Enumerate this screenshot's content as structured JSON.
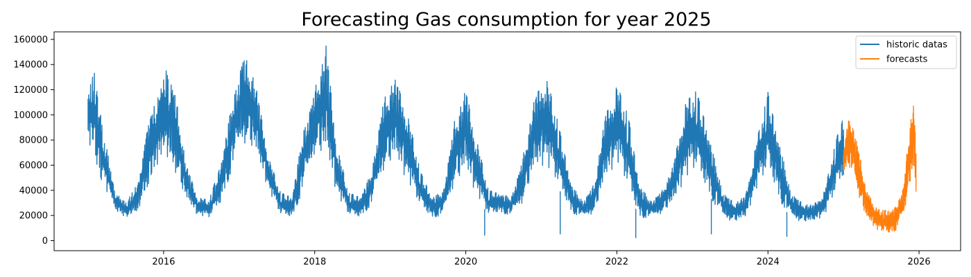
{
  "chart_data": {
    "type": "line",
    "title": "Forecasting Gas consumption for year 2025",
    "xlabel": "",
    "ylabel": "",
    "x_unit": "year",
    "xlim": [
      2014.55,
      2026.55
    ],
    "ylim": [
      -8000,
      166000
    ],
    "x_ticks": [
      {
        "value": 2016,
        "label": "2016"
      },
      {
        "value": 2018,
        "label": "2018"
      },
      {
        "value": 2020,
        "label": "2020"
      },
      {
        "value": 2022,
        "label": "2022"
      },
      {
        "value": 2024,
        "label": "2024"
      },
      {
        "value": 2026,
        "label": "2026"
      }
    ],
    "y_ticks": [
      {
        "value": 0,
        "label": "0"
      },
      {
        "value": 20000,
        "label": "20000"
      },
      {
        "value": 40000,
        "label": "40000"
      },
      {
        "value": 60000,
        "label": "60000"
      },
      {
        "value": 80000,
        "label": "80000"
      },
      {
        "value": 100000,
        "label": "100000"
      },
      {
        "value": 120000,
        "label": "120000"
      },
      {
        "value": 140000,
        "label": "140000"
      },
      {
        "value": 160000,
        "label": "160000"
      }
    ],
    "grid": false,
    "legend_position": "top-right",
    "series": [
      {
        "name": "historic datas",
        "color": "#1f77b4",
        "x_start": 2015.0,
        "x_end": 2025.0,
        "points_per_year": 120,
        "envelope_x": [
          2015.0,
          2015.08,
          2015.2,
          2015.35,
          2015.5,
          2015.65,
          2015.8,
          2015.95,
          2016.05,
          2016.15,
          2016.3,
          2016.45,
          2016.6,
          2016.75,
          2016.9,
          2017.05,
          2017.2,
          2017.4,
          2017.55,
          2017.7,
          2017.85,
          2018.0,
          2018.15,
          2018.3,
          2018.45,
          2018.6,
          2018.75,
          2018.9,
          2019.05,
          2019.2,
          2019.4,
          2019.55,
          2019.7,
          2019.85,
          2020.0,
          2020.15,
          2020.3,
          2020.45,
          2020.6,
          2020.75,
          2020.9,
          2021.05,
          2021.2,
          2021.4,
          2021.55,
          2021.7,
          2021.85,
          2022.0,
          2022.15,
          2022.3,
          2022.45,
          2022.6,
          2022.75,
          2022.9,
          2023.05,
          2023.2,
          2023.4,
          2023.55,
          2023.7,
          2023.85,
          2024.0,
          2024.15,
          2024.3,
          2024.45,
          2024.6,
          2024.75,
          2024.9,
          2025.0
        ],
        "envelope_low": [
          75000,
          65000,
          40000,
          25000,
          18000,
          20000,
          45000,
          60000,
          62000,
          55000,
          32000,
          20000,
          18000,
          28000,
          55000,
          78000,
          72000,
          38000,
          20000,
          18000,
          40000,
          70000,
          68000,
          35000,
          20000,
          18000,
          28000,
          55000,
          65000,
          50000,
          26000,
          18000,
          20000,
          45000,
          55000,
          35000,
          20000,
          22000,
          20000,
          30000,
          55000,
          60000,
          45000,
          22000,
          18000,
          22000,
          48000,
          62000,
          40000,
          18000,
          18000,
          22000,
          30000,
          48000,
          55000,
          38000,
          18000,
          15000,
          18000,
          40000,
          55000,
          32000,
          18000,
          15000,
          15000,
          20000,
          38000,
          48000
        ],
        "envelope_high": [
          120000,
          135000,
          90000,
          40000,
          30000,
          45000,
          95000,
          120000,
          140000,
          120000,
          60000,
          35000,
          32000,
          60000,
          110000,
          150000,
          130000,
          65000,
          38000,
          35000,
          90000,
          120000,
          155000,
          75000,
          38000,
          35000,
          55000,
          110000,
          130000,
          110000,
          55000,
          35000,
          40000,
          95000,
          120000,
          80000,
          40000,
          38000,
          35000,
          65000,
          110000,
          135000,
          100000,
          45000,
          32000,
          45000,
          100000,
          125000,
          100000,
          45000,
          32000,
          40000,
          60000,
          110000,
          120000,
          90000,
          40000,
          30000,
          35000,
          80000,
          118000,
          80000,
          40000,
          30000,
          28000,
          40000,
          80000,
          100000
        ],
        "spikes": [
          {
            "x": 2020.25,
            "y": 4000
          },
          {
            "x": 2021.25,
            "y": 5000
          },
          {
            "x": 2022.25,
            "y": 2000
          },
          {
            "x": 2023.25,
            "y": 5000
          },
          {
            "x": 2024.25,
            "y": 3000
          }
        ]
      },
      {
        "name": "forecasts",
        "color": "#ff7f0e",
        "x_start": 2025.0,
        "x_end": 2025.96,
        "points_per_year": 180,
        "envelope_x": [
          2025.0,
          2025.06,
          2025.15,
          2025.3,
          2025.45,
          2025.6,
          2025.7,
          2025.8,
          2025.88,
          2025.93,
          2025.96
        ],
        "envelope_low": [
          50000,
          62000,
          45000,
          18000,
          8000,
          5000,
          8000,
          22000,
          45000,
          55000,
          35000
        ],
        "envelope_high": [
          72000,
          98000,
          90000,
          40000,
          25000,
          24000,
          28000,
          45000,
          95000,
          108000,
          75000
        ],
        "spikes": []
      }
    ]
  }
}
